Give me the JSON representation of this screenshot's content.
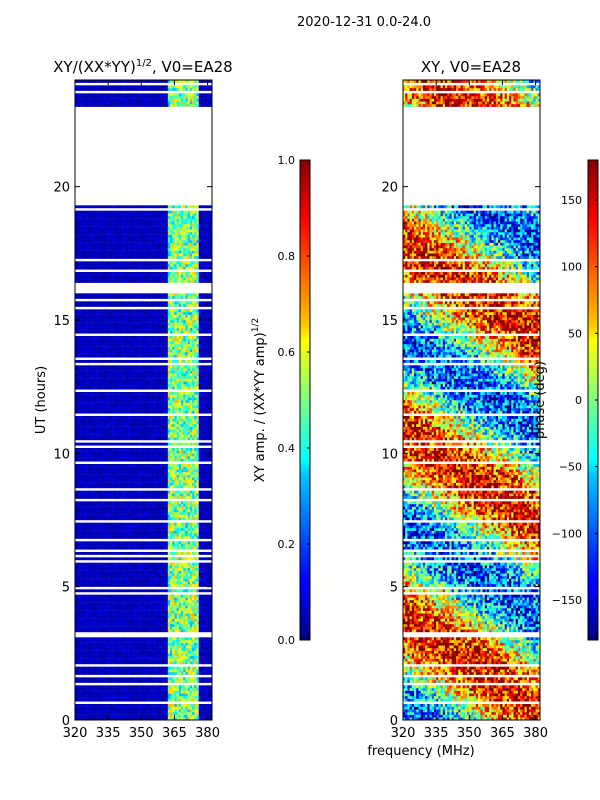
{
  "suptitle": "2020-12-31 0.0-24.0",
  "chart_data": [
    {
      "type": "heatmap",
      "title": "XY/(XX*YY)^1/2, V0=EA28",
      "title_parts": {
        "main": "XY/(XX*YY)",
        "sup": "1/2",
        "tail": ", V0=EA28"
      },
      "xlabel": "",
      "ylabel": "UT (hours)",
      "xlim": [
        320,
        382
      ],
      "ylim": [
        0,
        24
      ],
      "xticks": [
        "320",
        "335",
        "350",
        "365",
        "380"
      ],
      "xtick_values": [
        320,
        335,
        350,
        365,
        380
      ],
      "yticks": [
        "0",
        "5",
        "10",
        "15",
        "20"
      ],
      "ytick_values": [
        0,
        5,
        10,
        15,
        20
      ],
      "missing_time_ranges": [
        [
          19.3,
          19.35
        ],
        [
          19.4,
          23.0
        ],
        [
          20.0,
          20.05
        ]
      ],
      "description_values": {
        "background_amp": 0.05,
        "band_amp_range": [
          0.3,
          0.7
        ],
        "band_x_range": [
          362,
          375
        ]
      },
      "colorbar": {
        "label": "XY amp. / (XX*YY amp)",
        "label_sup": "1/2",
        "range": [
          0.0,
          1.0
        ],
        "ticks": [
          "0.0",
          "0.2",
          "0.4",
          "0.6",
          "0.8",
          "1.0"
        ],
        "tick_values": [
          0.0,
          0.2,
          0.4,
          0.6,
          0.8,
          1.0
        ],
        "colormap": "jet"
      }
    },
    {
      "type": "heatmap",
      "title": "XY, V0=EA28",
      "xlabel": "frequency (MHz)",
      "ylabel": "",
      "xlim": [
        320,
        382
      ],
      "ylim": [
        0,
        24
      ],
      "xticks": [
        "320",
        "335",
        "350",
        "365",
        "380"
      ],
      "xtick_values": [
        320,
        335,
        350,
        365,
        380
      ],
      "yticks": [
        "0",
        "5",
        "10",
        "15",
        "20"
      ],
      "ytick_values": [
        0,
        5,
        10,
        15,
        20
      ],
      "missing_time_ranges": [
        [
          19.3,
          19.35
        ],
        [
          19.4,
          23.0
        ]
      ],
      "colorbar": {
        "label": "phase (deg)",
        "range": [
          -180,
          180
        ],
        "ticks": [
          "−150",
          "−100",
          "−50",
          "0",
          "50",
          "100",
          "150"
        ],
        "tick_values": [
          -150,
          -100,
          -50,
          0,
          50,
          100,
          150
        ],
        "colormap": "jet"
      }
    }
  ]
}
